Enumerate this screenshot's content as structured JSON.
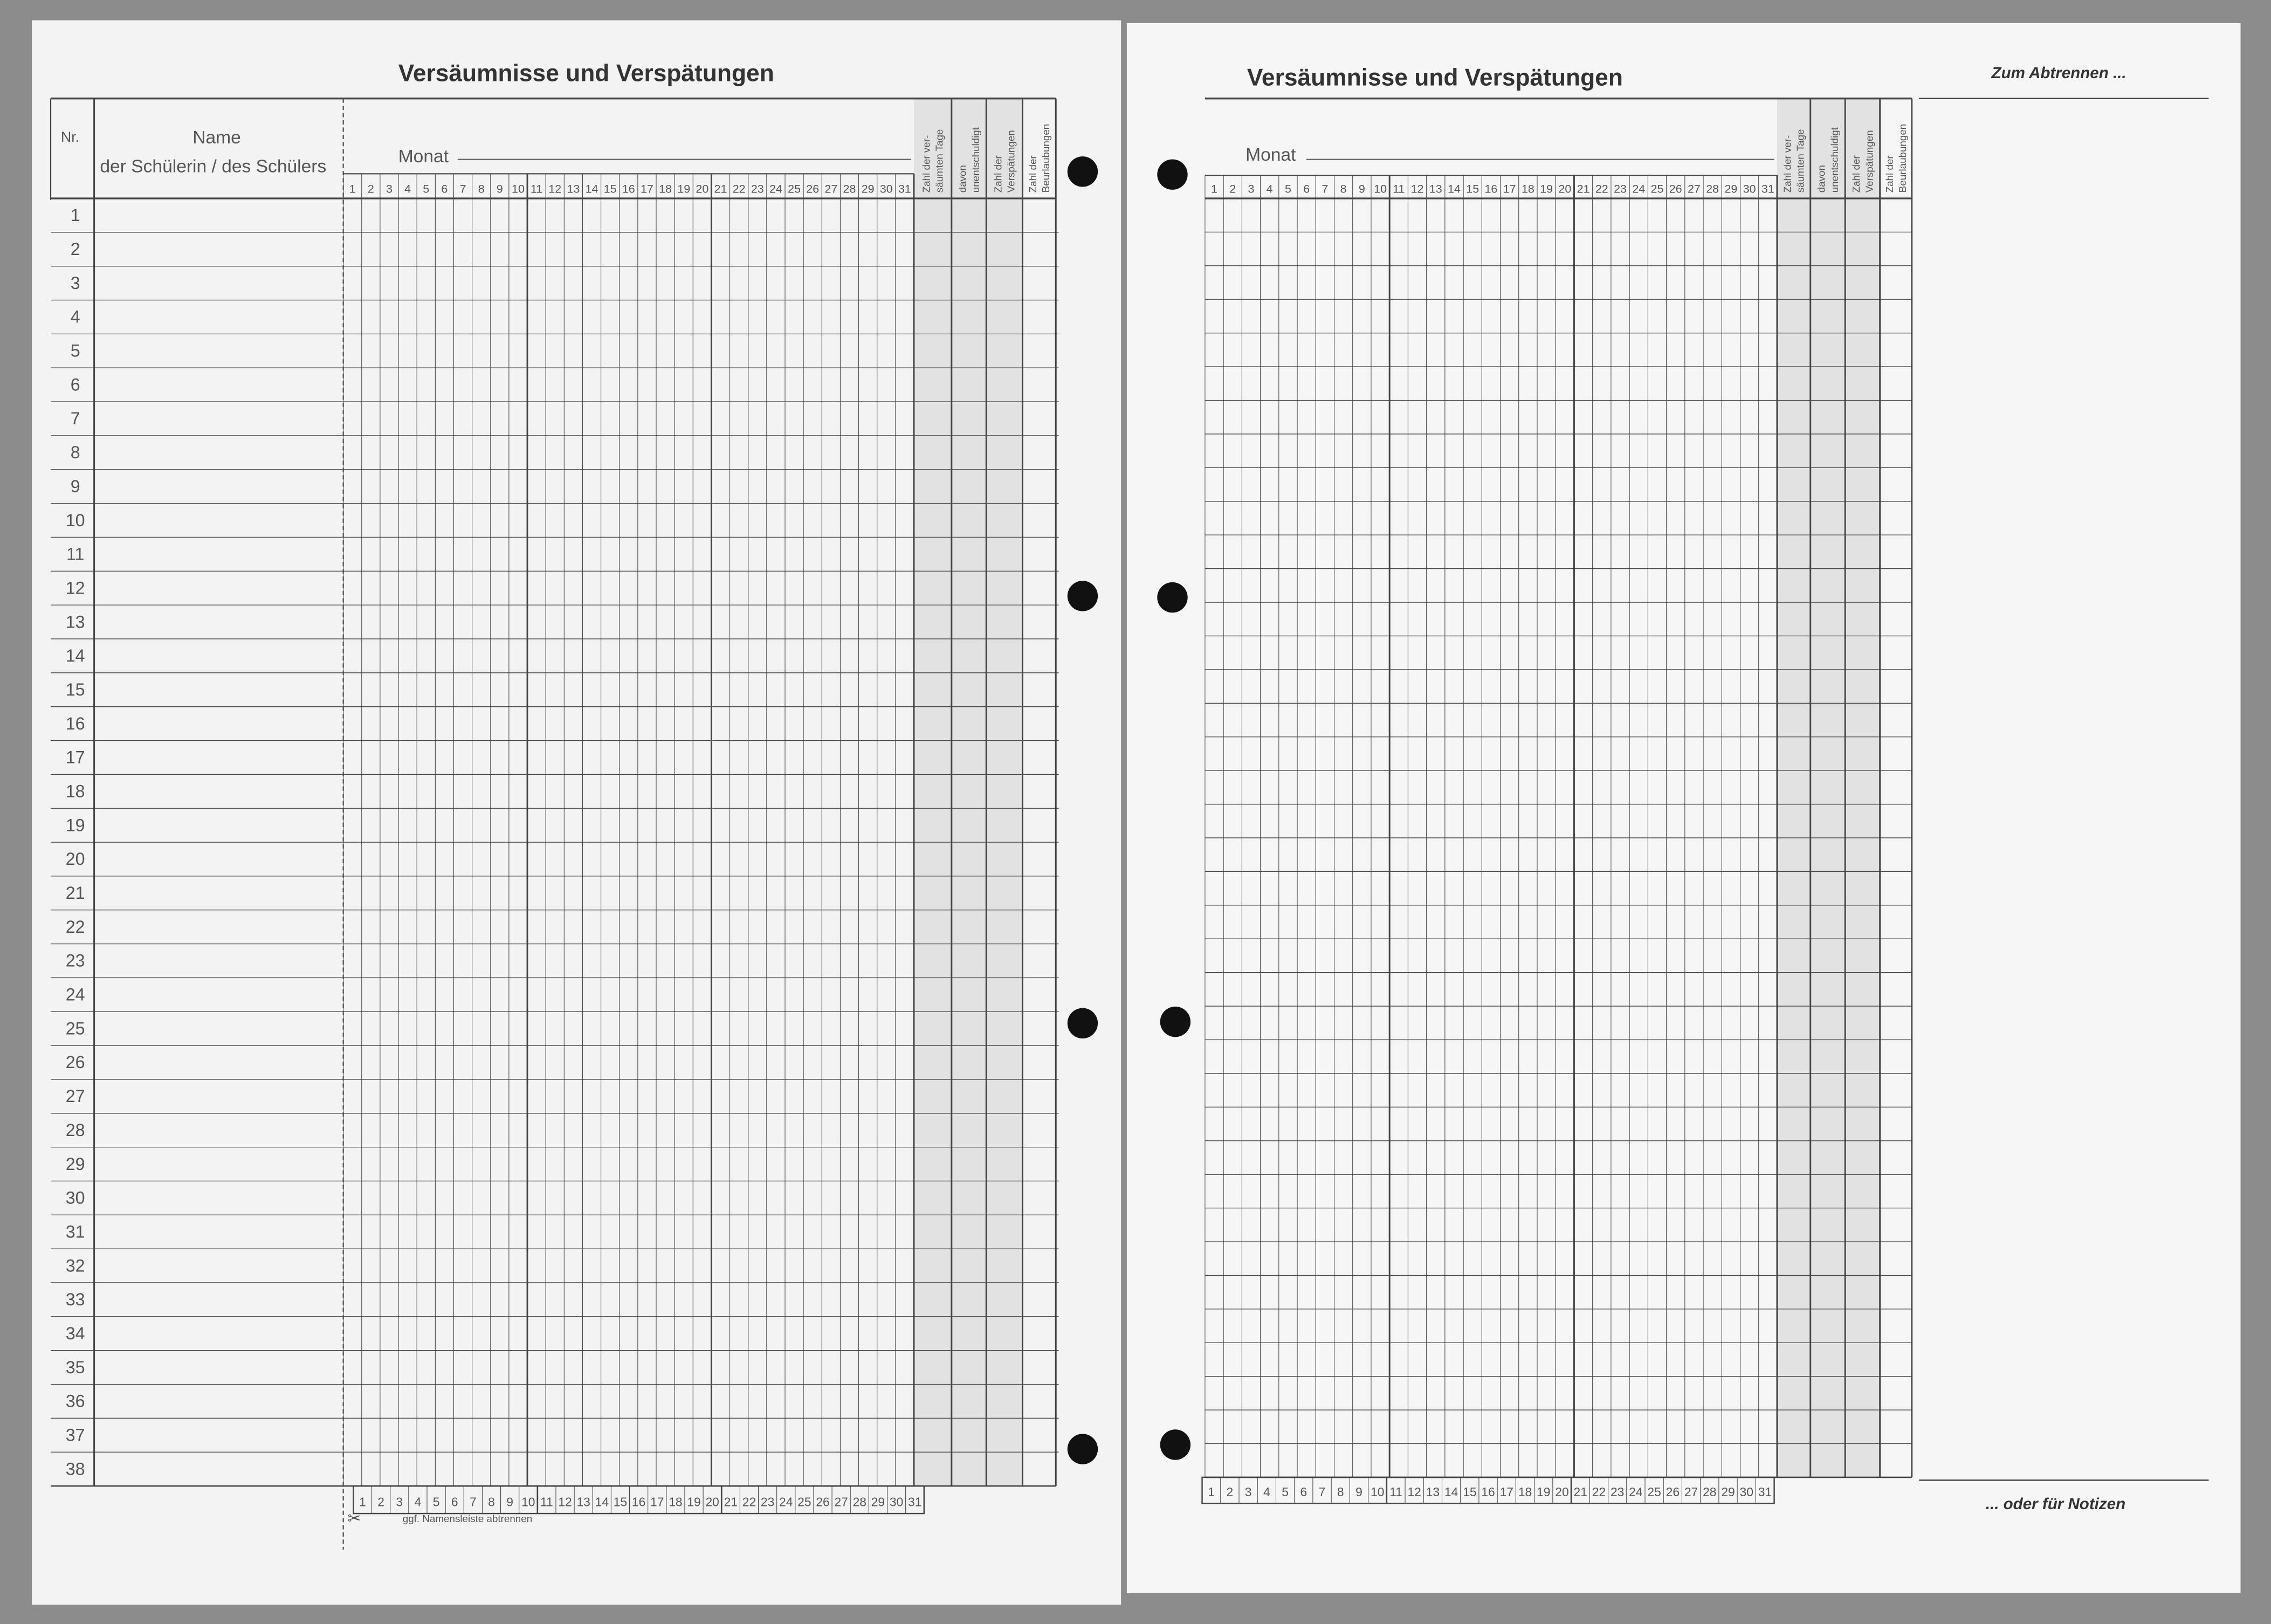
{
  "left_page": {
    "title": "Versäumnisse und Verspätungen",
    "nr_label": "Nr.",
    "name_label_1": "Name",
    "name_label_2": "der Schülerin / des Schülers",
    "month_label": "Monat",
    "summary_columns": [
      "Zahl der ver-|säumten Tage",
      "davon|unentschuldigt",
      "Zahl der|Verspätungen",
      "Zahl der|Beurlaubungen"
    ],
    "cut_note": "ggf. Namensleiste abtrennen",
    "cut_icon": "scissors-icon"
  },
  "right_page": {
    "title": "Versäumnisse und Verspätungen",
    "month_label": "Monat",
    "summary_columns": [
      "Zahl der ver-|säumten Tage",
      "davon|unentschuldigt",
      "Zahl der|Verspätungen",
      "Zahl der|Beurlaubungen"
    ],
    "tear_off_label": "Zum Abtrennen ...",
    "notes_label": "... oder für Notizen"
  },
  "days": [
    1,
    2,
    3,
    4,
    5,
    6,
    7,
    8,
    9,
    10,
    11,
    12,
    13,
    14,
    15,
    16,
    17,
    18,
    19,
    20,
    21,
    22,
    23,
    24,
    25,
    26,
    27,
    28,
    29,
    30,
    31
  ],
  "rows": [
    1,
    2,
    3,
    4,
    5,
    6,
    7,
    8,
    9,
    10,
    11,
    12,
    13,
    14,
    15,
    16,
    17,
    18,
    19,
    20,
    21,
    22,
    23,
    24,
    25,
    26,
    27,
    28,
    29,
    30,
    31,
    32,
    33,
    34,
    35,
    36,
    37,
    38
  ],
  "colors": {
    "background": "#8c8c8c",
    "paper": "#f3f3f3",
    "ink": "#444444",
    "shade": "#e2e2e2",
    "punch_hole": "#111111"
  }
}
